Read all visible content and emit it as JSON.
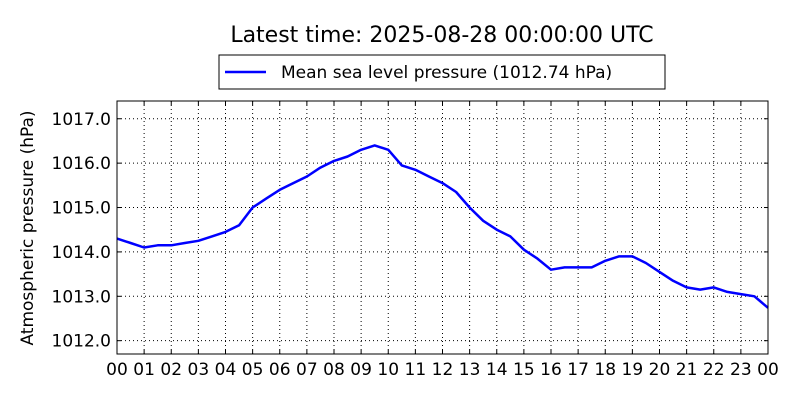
{
  "chart_data": {
    "type": "line",
    "title": "Latest time: 2025-08-28 00:00:00 UTC",
    "xlabel": "",
    "ylabel": "Atmospheric pressure (hPa)",
    "x_tick_labels": [
      "00",
      "01",
      "02",
      "03",
      "04",
      "05",
      "06",
      "07",
      "08",
      "09",
      "10",
      "11",
      "12",
      "13",
      "14",
      "15",
      "16",
      "17",
      "18",
      "19",
      "20",
      "21",
      "22",
      "23",
      "00"
    ],
    "x_range_hours": [
      0,
      24
    ],
    "y_tick_labels": [
      "1012.0",
      "1013.0",
      "1014.0",
      "1015.0",
      "1016.0",
      "1017.0"
    ],
    "y_ticks": [
      1012,
      1013,
      1014,
      1015,
      1016,
      1017
    ],
    "ylim": [
      1011.7,
      1017.4
    ],
    "grid": true,
    "legend_position": "top-center, above plot",
    "series": [
      {
        "name": "Mean sea level pressure (1012.74 hPa)",
        "color": "#0000ff",
        "x_hours": [
          0,
          0.5,
          1,
          1.5,
          2,
          2.5,
          3,
          3.5,
          4,
          4.5,
          5,
          5.5,
          6,
          6.5,
          7,
          7.5,
          8,
          8.5,
          9,
          9.5,
          10,
          10.5,
          11,
          11.5,
          12,
          12.5,
          13,
          13.5,
          14,
          14.5,
          15,
          15.5,
          16,
          16.5,
          17,
          17.5,
          18,
          18.5,
          19,
          19.5,
          20,
          20.5,
          21,
          21.5,
          22,
          22.5,
          23,
          23.5,
          24
        ],
        "values": [
          1014.3,
          1014.2,
          1014.1,
          1014.15,
          1014.15,
          1014.2,
          1014.25,
          1014.35,
          1014.45,
          1014.6,
          1015.0,
          1015.2,
          1015.4,
          1015.55,
          1015.7,
          1015.9,
          1016.05,
          1016.15,
          1016.3,
          1016.4,
          1016.3,
          1015.95,
          1015.85,
          1015.7,
          1015.55,
          1015.35,
          1015.0,
          1014.7,
          1014.5,
          1014.35,
          1014.05,
          1013.85,
          1013.6,
          1013.65,
          1013.65,
          1013.65,
          1013.8,
          1013.9,
          1013.9,
          1013.75,
          1013.55,
          1013.35,
          1013.2,
          1013.15,
          1013.2,
          1013.1,
          1013.05,
          1013.0,
          1012.74
        ]
      }
    ]
  }
}
